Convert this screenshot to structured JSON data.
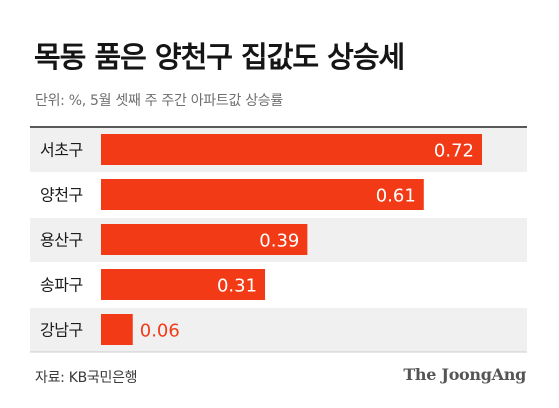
{
  "header": {
    "title": "목동 품은 양천구 집값도 상승세",
    "subtitle": "단위: %, 5월 셋째 주 주간 아파트값 상승률"
  },
  "footer": {
    "source": "자료: KB국민은행",
    "brand": "The JoongAng"
  },
  "colors": {
    "bar": "#f23b16",
    "row_band": "#f0f0f0",
    "divider": "#222222",
    "label_inside": "#ffffff",
    "label_outside": "#f23b16"
  },
  "chart_data": {
    "type": "bar",
    "orientation": "horizontal",
    "categories": [
      "서초구",
      "양천구",
      "용산구",
      "송파구",
      "강남구"
    ],
    "values": [
      0.72,
      0.61,
      0.39,
      0.31,
      0.06
    ],
    "value_labels": [
      "0.72",
      "0.61",
      "0.39",
      "0.31",
      "0.06"
    ],
    "title": "목동 품은 양천구 집값도 상승세",
    "subtitle": "단위: %, 5월 셋째 주 주간 아파트값 상승률",
    "xlim": [
      0,
      0.72
    ],
    "grid": false,
    "legend": "none"
  }
}
